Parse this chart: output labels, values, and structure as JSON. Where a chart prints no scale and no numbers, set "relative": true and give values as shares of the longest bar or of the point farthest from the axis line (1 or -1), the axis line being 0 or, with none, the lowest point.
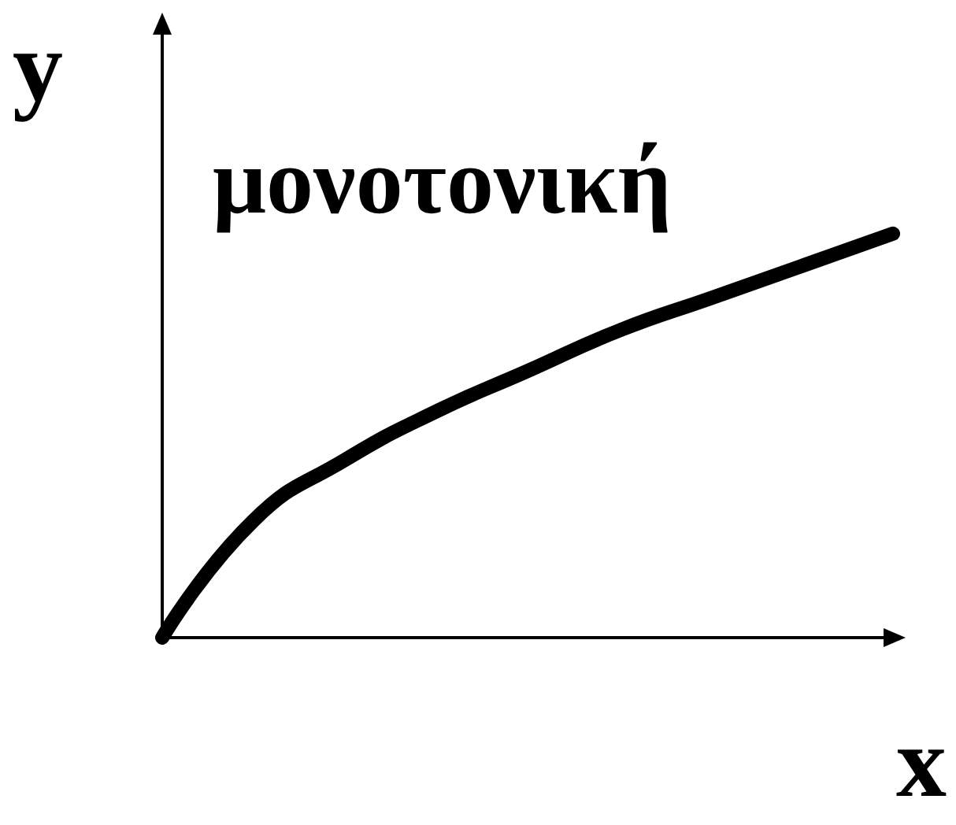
{
  "chart_data": {
    "type": "line",
    "relative": true,
    "xlabel": "x",
    "ylabel": "y",
    "annotations": [
      "μονοτονική"
    ],
    "color": "#000000",
    "line_style": "solid",
    "grid": false,
    "categories": [
      null,
      null,
      null,
      null,
      null,
      null,
      null,
      null,
      null
    ],
    "values": [
      0,
      0.29,
      0.44,
      0.56,
      0.66,
      0.76,
      0.84,
      0.92,
      1
    ]
  }
}
